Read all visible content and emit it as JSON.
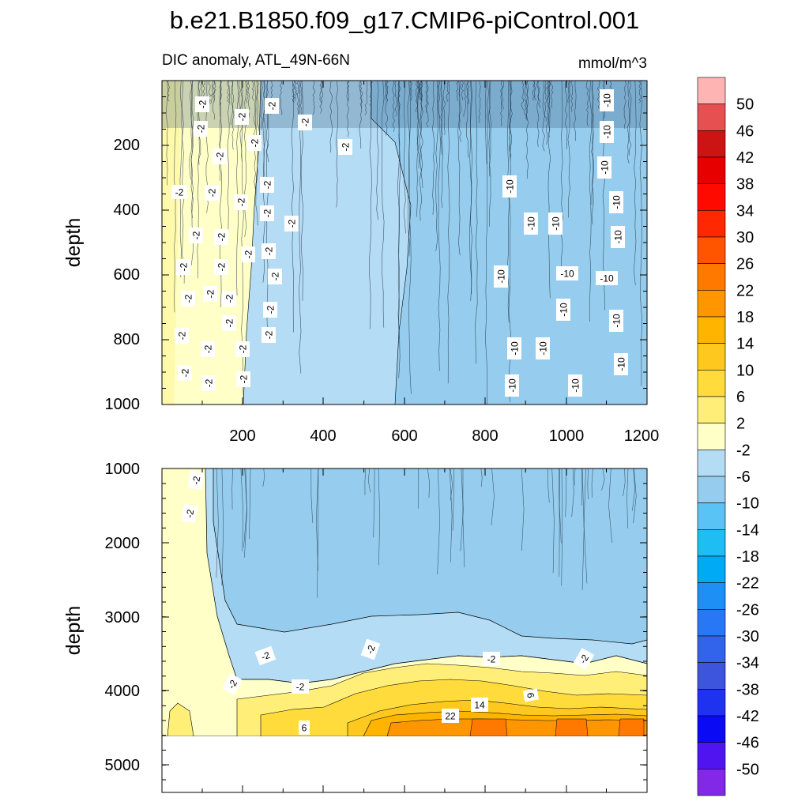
{
  "chart_data": {
    "type": "contour",
    "title": "b.e21.B1850.f09_g17.CMIP6-piControl.001",
    "subtitle_left": "DIC anomaly, ATL_49N-66N",
    "subtitle_right": "mmol/m^3",
    "xlabel": "",
    "ylabel": "depth",
    "xlim": [
      0,
      1200
    ],
    "x_ticks": [
      "200",
      "400",
      "600",
      "800",
      "1000",
      "1200"
    ],
    "upper_panel": {
      "ylim": [
        0,
        1000
      ],
      "y_ticks": [
        "200",
        "400",
        "600",
        "800",
        "1000"
      ]
    },
    "lower_panel": {
      "ylim": [
        1000,
        5400
      ],
      "y_ticks": [
        "1000",
        "2000",
        "3000",
        "4000",
        "5000"
      ],
      "data_bottom_depth": 4620
    },
    "colorbar": {
      "levels": [
        "50",
        "46",
        "42",
        "38",
        "34",
        "30",
        "26",
        "22",
        "18",
        "14",
        "10",
        "6",
        "2",
        "-2",
        "-6",
        "-10",
        "-14",
        "-18",
        "-22",
        "-26",
        "-30",
        "-34",
        "-38",
        "-42",
        "-46",
        "-50"
      ],
      "colors": [
        "#ffb4b4",
        "#e65050",
        "#cc1414",
        "#e60000",
        "#ff0a00",
        "#ff2800",
        "#ff5500",
        "#ff7800",
        "#ff9600",
        "#ffb400",
        "#ffc81e",
        "#ffdc3c",
        "#ffee78",
        "#ffffc8",
        "#b4dcf5",
        "#96cdee",
        "#5ac3f5",
        "#1ebef5",
        "#00aaf5",
        "#1e90f5",
        "#2878f5",
        "#3264eb",
        "#3c55dc",
        "#1e32f0",
        "#0a0af5",
        "#5014f0",
        "#8228e6"
      ]
    },
    "upper_contour_labels": [
      "-2",
      "-2",
      "-2",
      "-2",
      "-2",
      "-2",
      "-2",
      "-2",
      "-2",
      "-2",
      "-2",
      "-2",
      "-2",
      "-2",
      "-2",
      "-2",
      "-2",
      "-2",
      "-2",
      "-2",
      "-2",
      "-2",
      "-2",
      "-2",
      "-2",
      "-2",
      "-2",
      "-2",
      "-2",
      "-2",
      "-2",
      "-2",
      "-2",
      "-10",
      "-10",
      "-10",
      "-10",
      "-10",
      "-10",
      "-10",
      "-10",
      "-10",
      "-10",
      "-10",
      "-10",
      "-10",
      "-10",
      "-10",
      "-10",
      "-10",
      "-10"
    ],
    "lower_contour_labels": [
      "-2",
      "-2",
      "-2",
      "-2",
      "-2",
      "-2",
      "-2",
      "-2",
      "6",
      "14",
      "22",
      "6"
    ]
  }
}
